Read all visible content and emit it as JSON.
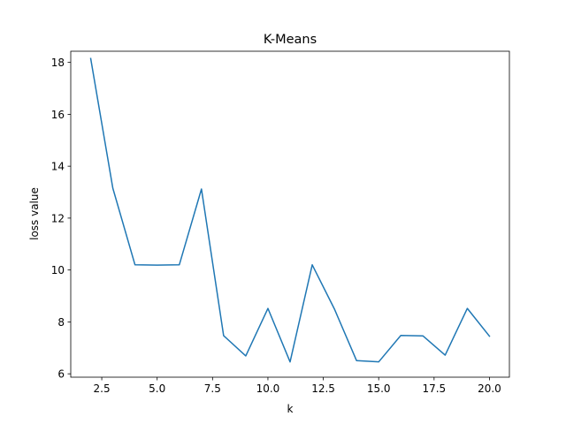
{
  "chart_data": {
    "type": "line",
    "title": "K-Means",
    "xlabel": "k",
    "ylabel": "loss value",
    "xlim": [
      1.1,
      20.9
    ],
    "ylim": [
      5.87,
      18.43
    ],
    "xticks": [
      2.5,
      5.0,
      7.5,
      10.0,
      12.5,
      15.0,
      17.5,
      20.0
    ],
    "xtick_labels": [
      "2.5",
      "5.0",
      "7.5",
      "10.0",
      "12.5",
      "15.0",
      "17.5",
      "20.0"
    ],
    "yticks": [
      6,
      8,
      10,
      12,
      14,
      16,
      18
    ],
    "ytick_labels": [
      "6",
      "8",
      "10",
      "12",
      "14",
      "16",
      "18"
    ],
    "grid": false,
    "series": [
      {
        "color": "#1f77b4",
        "x": [
          2,
          3,
          4,
          5,
          6,
          7,
          8,
          9,
          10,
          11,
          12,
          13,
          14,
          15,
          16,
          17,
          18,
          19,
          20
        ],
        "values": [
          18.15,
          13.15,
          10.2,
          10.19,
          10.2,
          13.12,
          7.47,
          6.69,
          8.52,
          6.46,
          10.2,
          8.5,
          6.51,
          6.46,
          7.48,
          7.46,
          6.72,
          8.52,
          7.45
        ]
      }
    ]
  }
}
